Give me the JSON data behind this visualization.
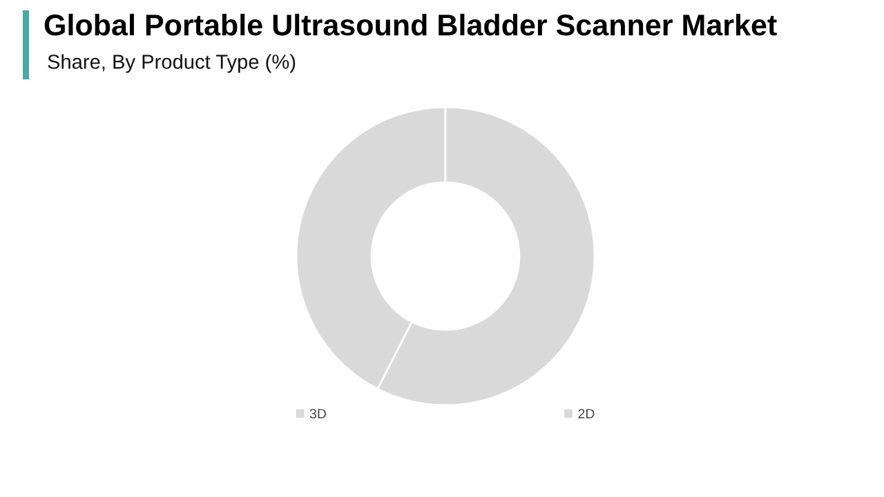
{
  "chart_data": {
    "type": "donut",
    "title": "Global Portable Ultrasound Bladder Scanner Market",
    "subtitle": "Share, By Product Type (%)",
    "categories": [
      "3D",
      "2D"
    ],
    "values": [
      42.5,
      57.5
    ],
    "colors": [
      "#d9d9d9",
      "#d9d9d9"
    ],
    "legend": "bottom"
  }
}
